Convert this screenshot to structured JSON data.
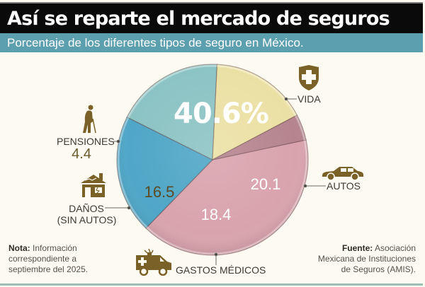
{
  "header": {
    "title": "Así se reparte el mercado de seguros",
    "subtitle": "Porcentaje de los diferentes tipos de seguro en México."
  },
  "labels": {
    "vida": "VIDA",
    "autos": "AUTOS",
    "gastos": "GASTOS MÉDICOS",
    "danos_line1": "DAÑOS",
    "danos_line2": "(SIN AUTOS)",
    "pensiones": "PENSIONES",
    "pensiones_value": "4.4",
    "vida_value": "40.6%",
    "autos_value": "20.1",
    "gastos_value": "18.4",
    "danos_value": "16.5"
  },
  "footer": {
    "note_label": "Nota:",
    "note_line1": "Información",
    "note_line2": "correspondiente a",
    "note_line3": "septiembre del 2025.",
    "source_label": "Fuente:",
    "source_line1": "Asociación",
    "source_line2": "Mexicana de Instituciones",
    "source_line3": "de Seguros (AMIS)."
  },
  "icons": {
    "vida": "shield-cross-icon",
    "autos": "car-icon",
    "gastos": "ambulance-icon",
    "danos": "damaged-house-icon",
    "pensiones": "elderly-person-icon"
  },
  "colors": {
    "vida": "#d9a3ad",
    "autos": "#4fa6c6",
    "gastos": "#8cc3c4",
    "danos": "#ebe0a4",
    "pensiones": "#b5848f",
    "icon": "#7a6128",
    "title_bg": "#0a0a0a",
    "subtitle_bg": "#5c9fae"
  },
  "chart_data": {
    "type": "pie",
    "title": "Así se reparte el mercado de seguros",
    "subtitle": "Porcentaje de los diferentes tipos de seguro en México.",
    "categories": [
      "Vida",
      "Autos",
      "Gastos Médicos",
      "Daños (sin autos)",
      "Pensiones"
    ],
    "values": [
      40.6,
      20.1,
      18.4,
      16.5,
      4.4
    ],
    "unit": "%",
    "colors": [
      "#d9a3ad",
      "#4fa6c6",
      "#8cc3c4",
      "#ebe0a4",
      "#b5848f"
    ],
    "start_angle_deg_clockwise_from_top": 78,
    "annotations": [
      "Nota: Información correspondiente a septiembre del 2025.",
      "Fuente: Asociación Mexicana de Instituciones de Seguros (AMIS)."
    ]
  }
}
